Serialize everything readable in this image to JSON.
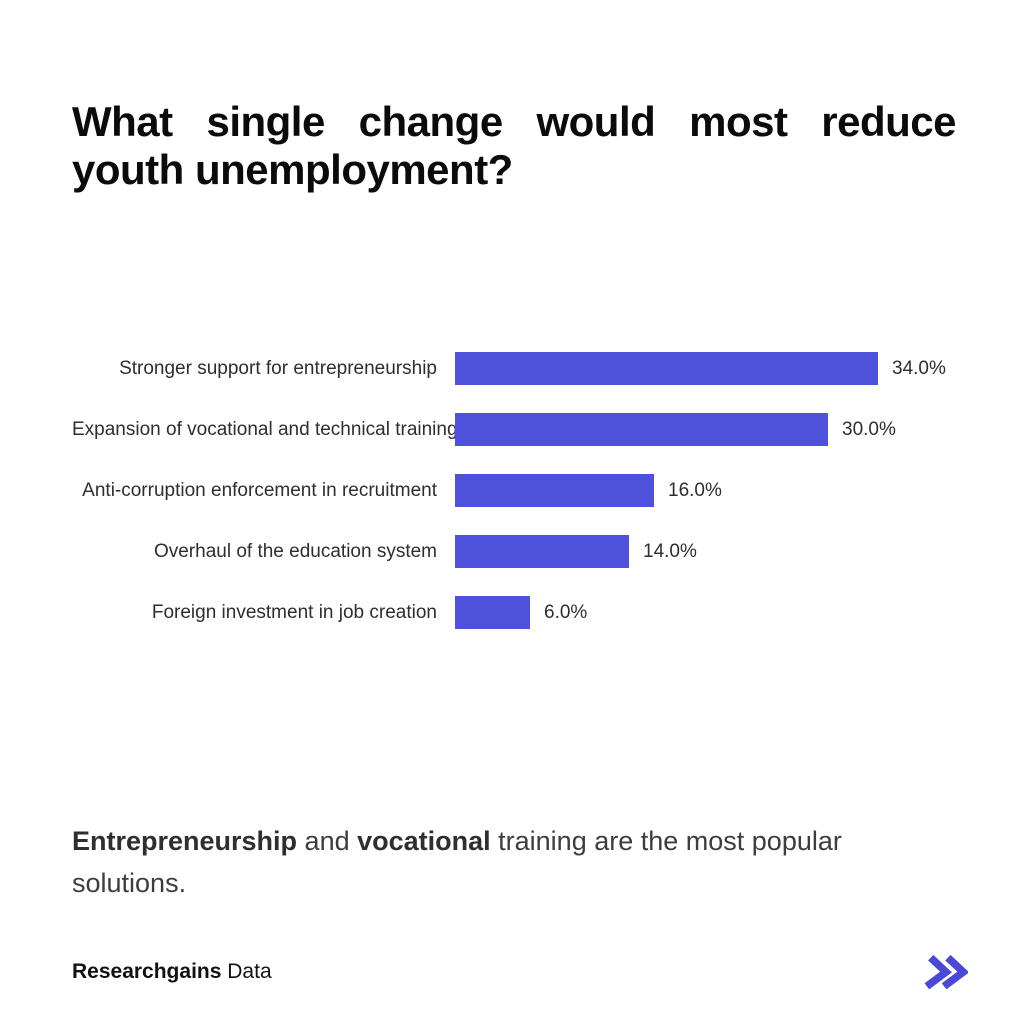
{
  "page": {
    "title": "What single change would most reduce youth unemployment?",
    "caption_segments": [
      {
        "text": "Entrepreneurship",
        "bold": true
      },
      {
        "text": " and ",
        "bold": false
      },
      {
        "text": "vocational",
        "bold": true
      },
      {
        "text": " training are the most popular solutions.",
        "bold": false
      }
    ],
    "footer": {
      "brand_bold": "Researchgains",
      "brand_regular": "Data",
      "icon": "double-chevron-right-icon",
      "icon_color": "#4a48d6"
    }
  },
  "chart_data": {
    "type": "bar",
    "orientation": "horizontal",
    "title": "What single change would most reduce youth unemployment?",
    "categories": [
      "Stronger support for entrepreneurship",
      "Expansion of vocational and technical training",
      "Anti-corruption enforcement in recruitment",
      "Overhaul of the education system",
      "Foreign investment in job creation"
    ],
    "values": [
      34.0,
      30.0,
      16.0,
      14.0,
      6.0
    ],
    "value_labels": [
      "34.0%",
      "30.0%",
      "16.0%",
      "14.0%",
      "6.0%"
    ],
    "unit": "%",
    "xlim": [
      0,
      34
    ],
    "grid": false,
    "legend": false,
    "sorted": "descending",
    "bar_color": "#4E51DB",
    "label_position": "left",
    "value_position": "right-of-bar"
  }
}
